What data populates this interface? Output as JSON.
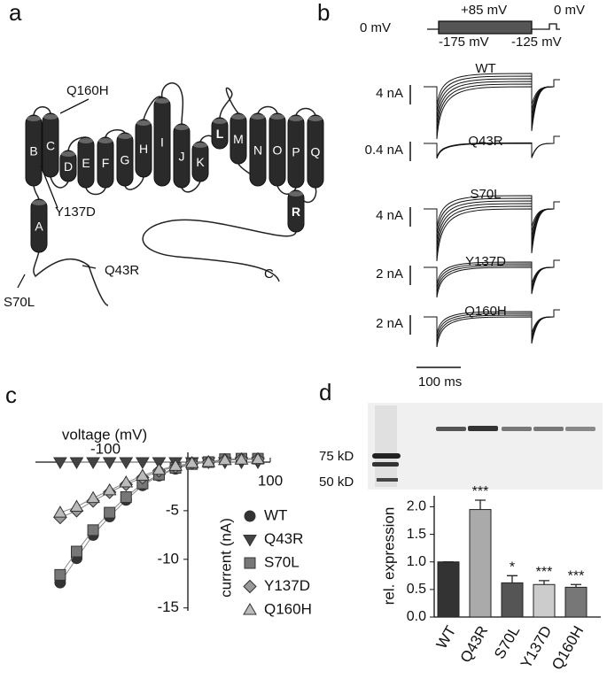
{
  "panel_labels": [
    "a",
    "b",
    "c",
    "d"
  ],
  "topology": {
    "helices": [
      "A",
      "B",
      "C",
      "D",
      "E",
      "F",
      "G",
      "H",
      "I",
      "J",
      "K",
      "L",
      "M",
      "N",
      "O",
      "P",
      "Q",
      "R"
    ],
    "mutations": [
      "Q160H",
      "Y137D",
      "Q43R",
      "S70L"
    ],
    "c_terminus": "C"
  },
  "protocol": {
    "holding": "0 mV",
    "step": "+85 mV",
    "end": "0 mV",
    "low": "-175 mV",
    "tail": "-125 mV"
  },
  "traces": [
    {
      "name": "WT",
      "scale": "4 nA"
    },
    {
      "name": "Q43R",
      "scale": "0.4 nA"
    },
    {
      "name": "S70L",
      "scale": "4 nA"
    },
    {
      "name": "Y137D",
      "scale": "2 nA"
    },
    {
      "name": "Q160H",
      "scale": "2 nA"
    }
  ],
  "time_scale": "100 ms",
  "blot": {
    "markers": [
      "75 kD",
      "50 kD"
    ]
  },
  "chart_data": [
    {
      "type": "line",
      "xlabel": "voltage (mV)",
      "ylabel": "current (nA)",
      "x": [
        -155,
        -135,
        -115,
        -95,
        -75,
        -55,
        -35,
        -15,
        5,
        25,
        45,
        65,
        85
      ],
      "xlim": [
        -185,
        100
      ],
      "ylim": [
        -15.3,
        1.0
      ],
      "xticks": [
        -100,
        100
      ],
      "yticks": [
        -5,
        -10,
        -15
      ],
      "series": [
        {
          "name": "WT",
          "color": "#333333",
          "marker": "circle",
          "values": [
            -12.4,
            -9.9,
            -7.5,
            -5.6,
            -3.9,
            -2.4,
            -1.4,
            -0.7,
            -0.2,
            0,
            0.3,
            0.3,
            0.3
          ]
        },
        {
          "name": "Q43R",
          "color": "#444444",
          "marker": "triangle-down",
          "values": [
            0,
            0,
            0,
            0,
            0,
            0,
            0,
            0,
            0,
            0,
            0,
            0,
            0
          ]
        },
        {
          "name": "S70L",
          "color": "#777777",
          "marker": "square",
          "values": [
            -11.6,
            -9.2,
            -7.0,
            -5.2,
            -3.6,
            -2.2,
            -1.3,
            -0.6,
            -0.2,
            0,
            0.3,
            0.35,
            0.35
          ]
        },
        {
          "name": "Y137D",
          "color": "#999999",
          "marker": "diamond",
          "values": [
            -5.7,
            -5.0,
            -4.0,
            -3.1,
            -2.3,
            -1.6,
            -0.9,
            -0.5,
            -0.1,
            0,
            0.2,
            0.3,
            0.3
          ]
        },
        {
          "name": "Q160H",
          "color": "#bbbbbb",
          "marker": "triangle-up",
          "values": [
            -5.2,
            -4.6,
            -3.7,
            -2.9,
            -2.1,
            -1.4,
            -0.8,
            -0.4,
            -0.1,
            0,
            0.2,
            0.25,
            0.3
          ]
        }
      ]
    },
    {
      "type": "bar",
      "ylabel": "rel. expression",
      "categories": [
        "WT",
        "Q43R",
        "S70L",
        "Y137D",
        "Q160H"
      ],
      "values": [
        1.0,
        1.95,
        0.62,
        0.59,
        0.54
      ],
      "errors": [
        0,
        0.17,
        0.13,
        0.07,
        0.05
      ],
      "significance": [
        null,
        "***",
        "*",
        "***",
        "***"
      ],
      "colors": [
        "#333333",
        "#aaaaaa",
        "#555555",
        "#cccccc",
        "#777777"
      ],
      "ylim": [
        0,
        2.2
      ],
      "yticks": [
        {
          "value": 0,
          "label": "0.0"
        },
        {
          "value": 0.5,
          "label": "0.5"
        },
        {
          "value": 1,
          "label": "1.0"
        },
        {
          "value": 1.5,
          "label": "1.5"
        },
        {
          "value": 2,
          "label": "2.0"
        }
      ]
    }
  ]
}
